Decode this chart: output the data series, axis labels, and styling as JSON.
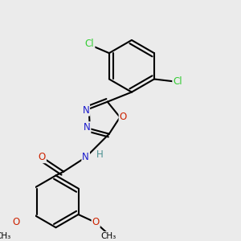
{
  "background_color": "#ebebeb",
  "bond_color": "#000000",
  "bond_width": 1.5,
  "atom_colors": {
    "C": "#000000",
    "N": "#1a1acc",
    "O": "#cc2200",
    "Cl": "#33cc33",
    "H": "#4a9090"
  },
  "font_size": 8.5
}
